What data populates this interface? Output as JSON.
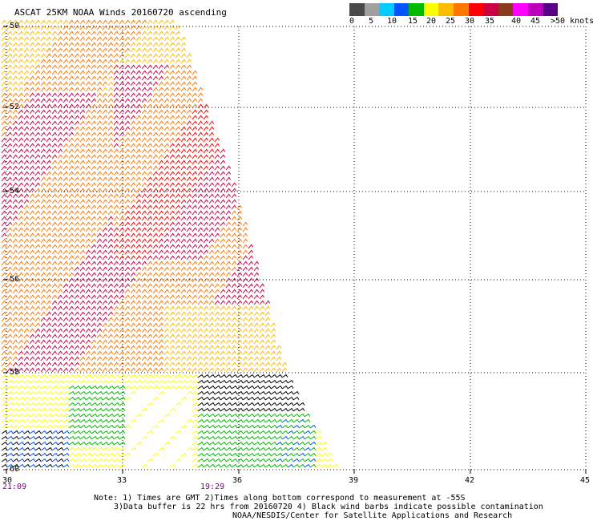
{
  "title": "ASCAT 25KM NOAA Winds 20160720 ascending",
  "legend": {
    "colors": [
      "#4a4a4a",
      "#a0a0a0",
      "#00ccff",
      "#0055ff",
      "#00bb00",
      "#ffff00",
      "#ffbb00",
      "#ff7700",
      "#ff0000",
      "#cc0044",
      "#8b3b1b",
      "#ff00ff",
      "#bb00bb",
      "#5a0088"
    ],
    "labels": [
      "0",
      "5",
      "10",
      "15",
      "20",
      "25",
      "30",
      "35",
      "40",
      "45",
      ">50 knots"
    ]
  },
  "map": {
    "lon_labels": [
      "30",
      "33",
      "36",
      "39",
      "42",
      "45"
    ],
    "lat_labels": [
      "-50",
      "-52",
      "-54",
      "-56",
      "-58",
      "-60"
    ],
    "times": [
      "21:09",
      "19:29"
    ]
  },
  "notes": {
    "line1": "Note: 1) Times are GMT 2)Times along bottom correspond to measurement at -55S",
    "line2": "3)Data buffer is 22 hrs from 20160720 4) Black wind barbs indicate possible contamination",
    "line3": "NOAA/NESDIS/Center for Satellite Applications and Research"
  }
}
